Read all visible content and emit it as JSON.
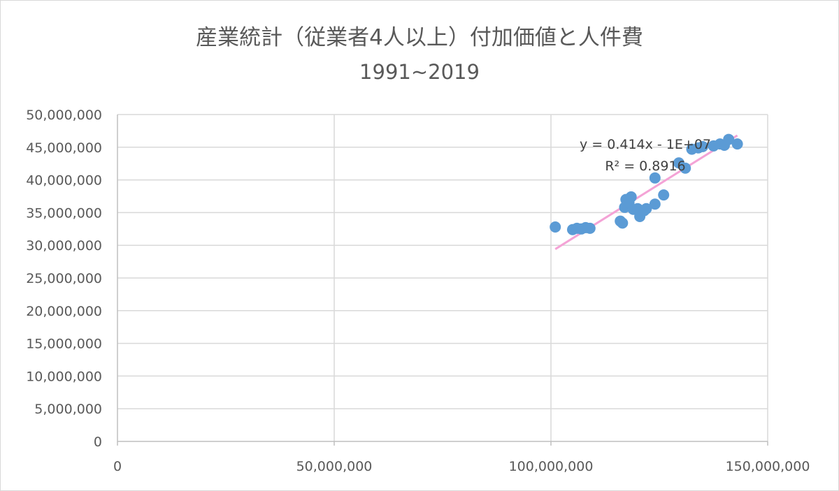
{
  "chart_data": {
    "type": "scatter",
    "title": "産業統計（従業者4人以上）付加価値と人件費",
    "subtitle": "1991~2019",
    "xlim": [
      0,
      150000000
    ],
    "ylim": [
      0,
      50000000
    ],
    "x_ticks": [
      0,
      50000000,
      100000000,
      150000000
    ],
    "x_tick_labels": [
      "0",
      "50,000,000",
      "100,000,000",
      "150,000,000"
    ],
    "y_ticks": [
      0,
      5000000,
      10000000,
      15000000,
      20000000,
      25000000,
      30000000,
      35000000,
      40000000,
      45000000,
      50000000
    ],
    "y_tick_labels": [
      "0",
      "5,000,000",
      "10,000,000",
      "15,000,000",
      "20,000,000",
      "25,000,000",
      "30,000,000",
      "35,000,000",
      "40,000,000",
      "45,000,000",
      "50,000,000"
    ],
    "grid": true,
    "marker_color": "#5b9bd5",
    "trendline_color": "#f4a3d6",
    "points": [
      {
        "x": 101000000,
        "y": 32800000
      },
      {
        "x": 105000000,
        "y": 32400000
      },
      {
        "x": 106000000,
        "y": 32600000
      },
      {
        "x": 107000000,
        "y": 32500000
      },
      {
        "x": 108000000,
        "y": 32700000
      },
      {
        "x": 109000000,
        "y": 32600000
      },
      {
        "x": 116000000,
        "y": 33700000
      },
      {
        "x": 116500000,
        "y": 33400000
      },
      {
        "x": 117000000,
        "y": 35800000
      },
      {
        "x": 117300000,
        "y": 37000000
      },
      {
        "x": 118000000,
        "y": 36500000
      },
      {
        "x": 118500000,
        "y": 37400000
      },
      {
        "x": 119000000,
        "y": 35500000
      },
      {
        "x": 120000000,
        "y": 35600000
      },
      {
        "x": 120500000,
        "y": 34400000
      },
      {
        "x": 121500000,
        "y": 35300000
      },
      {
        "x": 122000000,
        "y": 35600000
      },
      {
        "x": 124000000,
        "y": 40300000
      },
      {
        "x": 124000000,
        "y": 36300000
      },
      {
        "x": 126000000,
        "y": 37700000
      },
      {
        "x": 129500000,
        "y": 42600000
      },
      {
        "x": 131000000,
        "y": 41800000
      },
      {
        "x": 132500000,
        "y": 44700000
      },
      {
        "x": 134000000,
        "y": 44900000
      },
      {
        "x": 135000000,
        "y": 45100000
      },
      {
        "x": 137500000,
        "y": 45200000
      },
      {
        "x": 139000000,
        "y": 45500000
      },
      {
        "x": 140000000,
        "y": 45300000
      },
      {
        "x": 141000000,
        "y": 46200000
      },
      {
        "x": 143000000,
        "y": 45500000
      }
    ],
    "trendline": {
      "equation": "y = 0.414x - 1E+07",
      "r_squared": "R² = 0.8916",
      "x_range": [
        101000000,
        143000000
      ],
      "slope": 0.414,
      "intercept": -12400000
    }
  }
}
